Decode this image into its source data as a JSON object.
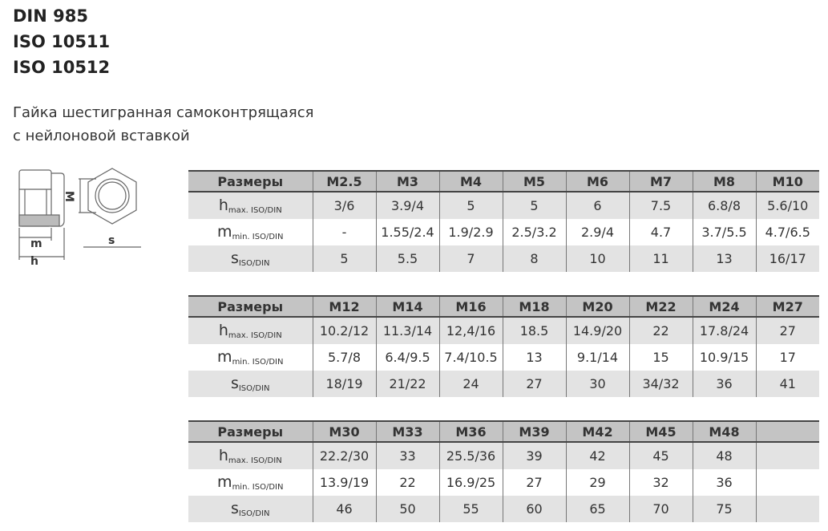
{
  "codes": [
    "DIN 985",
    "ISO 10511",
    "ISO 10512"
  ],
  "description": [
    "Гайка шестигранная самоконтрящаяся",
    "с нейлоновой вставкой"
  ],
  "drawing": {
    "labels": {
      "m": "m",
      "h": "h",
      "M": "M",
      "s": "s"
    }
  },
  "row_labels": {
    "header": "Размеры",
    "h": {
      "main": "h",
      "sub": "max. ISO/DIN"
    },
    "m": {
      "main": "m",
      "sub": "min. ISO/DIN"
    },
    "s": {
      "main": "s",
      "sub": "ISO/DIN"
    }
  },
  "tables": [
    {
      "sizes": [
        "M2.5",
        "M3",
        "M4",
        "M5",
        "M6",
        "M7",
        "M8",
        "M10"
      ],
      "h": [
        "3/6",
        "3.9/4",
        "5",
        "5",
        "6",
        "7.5",
        "6.8/8",
        "5.6/10"
      ],
      "m": [
        "-",
        "1.55/2.4",
        "1.9/2.9",
        "2.5/3.2",
        "2.9/4",
        "4.7",
        "3.7/5.5",
        "4.7/6.5"
      ],
      "s": [
        "5",
        "5.5",
        "7",
        "8",
        "10",
        "11",
        "13",
        "16/17"
      ]
    },
    {
      "sizes": [
        "M12",
        "M14",
        "M16",
        "M18",
        "M20",
        "M22",
        "M24",
        "M27"
      ],
      "h": [
        "10.2/12",
        "11.3/14",
        "12,4/16",
        "18.5",
        "14.9/20",
        "22",
        "17.8/24",
        "27"
      ],
      "m": [
        "5.7/8",
        "6.4/9.5",
        "7.4/10.5",
        "13",
        "9.1/14",
        "15",
        "10.9/15",
        "17"
      ],
      "s": [
        "18/19",
        "21/22",
        "24",
        "27",
        "30",
        "34/32",
        "36",
        "41"
      ]
    },
    {
      "sizes": [
        "M30",
        "M33",
        "M36",
        "M39",
        "M42",
        "M45",
        "M48",
        ""
      ],
      "h": [
        "22.2/30",
        "33",
        "25.5/36",
        "39",
        "42",
        "45",
        "48",
        ""
      ],
      "m": [
        "13.9/19",
        "22",
        "16.9/25",
        "27",
        "29",
        "32",
        "36",
        ""
      ],
      "s": [
        "46",
        "50",
        "55",
        "60",
        "65",
        "70",
        "75",
        ""
      ]
    }
  ]
}
